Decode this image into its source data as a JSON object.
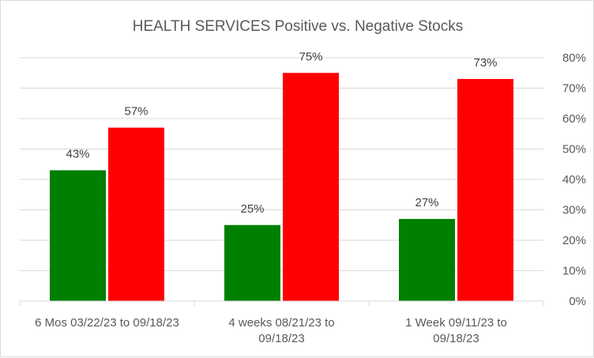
{
  "chart_data": {
    "type": "bar",
    "title": "HEALTH SERVICES Positive vs. Negative Stocks",
    "categories": [
      [
        "6 Mos 03/22/23 to 09/18/23"
      ],
      [
        "4 weeks 08/21/23 to",
        "09/18/23"
      ],
      [
        "1 Week 09/11/23 to",
        "09/18/23"
      ]
    ],
    "series": [
      {
        "values": [
          43,
          25,
          27
        ],
        "labels": [
          "43%",
          "25%",
          "27%"
        ],
        "color": "#008000"
      },
      {
        "values": [
          57,
          75,
          73
        ],
        "labels": [
          "57%",
          "75%",
          "73%"
        ],
        "color": "#ff0000"
      }
    ],
    "y_axis": {
      "position": "right",
      "range": [
        0,
        80
      ],
      "ticks": [
        "0%",
        "10%",
        "20%",
        "30%",
        "40%",
        "50%",
        "60%",
        "70%",
        "80%"
      ]
    },
    "grid": true,
    "legend": "none"
  }
}
